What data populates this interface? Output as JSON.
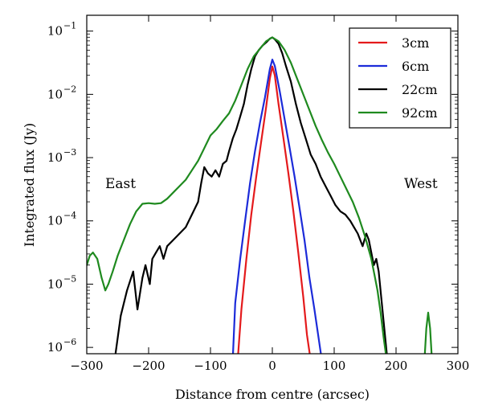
{
  "chart_data": {
    "type": "line",
    "xlabel": "Distance from centre (arcsec)",
    "ylabel": "Integrated flux (Jy)",
    "xlim": [
      -300,
      300
    ],
    "ylim_log10": [
      -6.1,
      -0.75
    ],
    "y_scale": "log",
    "x_ticks": [
      -300,
      -200,
      -100,
      0,
      100,
      200,
      300
    ],
    "x_tick_labels": [
      "−300",
      "−200",
      "−100",
      "0",
      "100",
      "200",
      "300"
    ],
    "y_ticks_log10": [
      -6,
      -5,
      -4,
      -3,
      -2,
      -1
    ],
    "y_tick_mantissa": "10",
    "y_tick_exponents": [
      "−6",
      "−5",
      "−4",
      "−3",
      "−2",
      "−1"
    ],
    "annotations": {
      "left": "East",
      "right": "West"
    },
    "legend_position": "top-right",
    "series": [
      {
        "name": "3cm",
        "color": "#e41a1c",
        "x": [
          -56,
          -50,
          -42,
          -34,
          -26,
          -18,
          -10,
          -4,
          0,
          4,
          10,
          18,
          26,
          34,
          42,
          50,
          56,
          62
        ],
        "log_y": [
          -6.2,
          -5.4,
          -4.6,
          -3.9,
          -3.3,
          -2.75,
          -2.2,
          -1.75,
          -1.56,
          -1.7,
          -2.15,
          -2.7,
          -3.25,
          -3.85,
          -4.5,
          -5.2,
          -5.8,
          -6.2
        ]
      },
      {
        "name": "6cm",
        "color": "#1c2bd9",
        "x": [
          -64,
          -60,
          -52,
          -44,
          -36,
          -28,
          -20,
          -12,
          -4,
          0,
          4,
          12,
          20,
          28,
          36,
          44,
          52,
          60,
          68,
          74,
          80
        ],
        "log_y": [
          -6.2,
          -5.3,
          -4.6,
          -4.0,
          -3.4,
          -2.9,
          -2.45,
          -2.05,
          -1.6,
          -1.45,
          -1.55,
          -1.95,
          -2.4,
          -2.85,
          -3.3,
          -3.8,
          -4.3,
          -4.9,
          -5.4,
          -5.8,
          -6.2
        ]
      },
      {
        "name": "22cm",
        "color": "#000000",
        "x": [
          -255,
          -245,
          -235,
          -225,
          -218,
          -210,
          -205,
          -198,
          -194,
          -188,
          -182,
          -176,
          -170,
          -160,
          -150,
          -140,
          -130,
          -120,
          -115,
          -110,
          -104,
          -98,
          -92,
          -86,
          -80,
          -74,
          -70,
          -64,
          -58,
          -52,
          -46,
          -40,
          -34,
          -28,
          -22,
          -16,
          -10,
          -4,
          0,
          4,
          10,
          16,
          22,
          30,
          38,
          46,
          54,
          62,
          70,
          78,
          86,
          94,
          102,
          110,
          118,
          126,
          132,
          138,
          146,
          152,
          156,
          160,
          164,
          168,
          172,
          176,
          180,
          184,
          186,
          188
        ],
        "log_y": [
          -6.2,
          -5.5,
          -5.1,
          -4.8,
          -5.4,
          -4.9,
          -4.7,
          -5.0,
          -4.6,
          -4.5,
          -4.4,
          -4.6,
          -4.4,
          -4.3,
          -4.2,
          -4.1,
          -3.9,
          -3.7,
          -3.4,
          -3.15,
          -3.25,
          -3.3,
          -3.2,
          -3.3,
          -3.1,
          -3.05,
          -2.9,
          -2.7,
          -2.55,
          -2.35,
          -2.15,
          -1.85,
          -1.6,
          -1.4,
          -1.3,
          -1.23,
          -1.18,
          -1.12,
          -1.1,
          -1.13,
          -1.2,
          -1.35,
          -1.55,
          -1.8,
          -2.15,
          -2.45,
          -2.7,
          -2.95,
          -3.1,
          -3.3,
          -3.45,
          -3.6,
          -3.75,
          -3.85,
          -3.9,
          -4.0,
          -4.1,
          -4.2,
          -4.4,
          -4.2,
          -4.3,
          -4.5,
          -4.7,
          -4.6,
          -4.8,
          -5.2,
          -5.6,
          -6.0,
          -6.2,
          -6.3
        ]
      },
      {
        "name": "92cm",
        "color": "#1f8a1f",
        "x": [
          -300,
          -295,
          -290,
          -283,
          -276,
          -270,
          -265,
          -258,
          -250,
          -240,
          -230,
          -220,
          -210,
          -200,
          -190,
          -180,
          -170,
          -160,
          -150,
          -140,
          -130,
          -120,
          -110,
          -100,
          -90,
          -80,
          -70,
          -60,
          -50,
          -40,
          -30,
          -20,
          -10,
          0,
          10,
          20,
          30,
          40,
          50,
          60,
          70,
          80,
          90,
          100,
          110,
          120,
          130,
          140,
          150,
          160,
          165,
          170,
          175,
          180,
          185,
          188
        ],
        "log_y": [
          -4.7,
          -4.55,
          -4.5,
          -4.6,
          -4.9,
          -5.1,
          -5.0,
          -4.8,
          -4.55,
          -4.3,
          -4.05,
          -3.85,
          -3.73,
          -3.72,
          -3.73,
          -3.72,
          -3.65,
          -3.55,
          -3.45,
          -3.35,
          -3.2,
          -3.05,
          -2.85,
          -2.65,
          -2.55,
          -2.42,
          -2.3,
          -2.1,
          -1.85,
          -1.6,
          -1.4,
          -1.28,
          -1.16,
          -1.1,
          -1.16,
          -1.3,
          -1.5,
          -1.75,
          -2.0,
          -2.25,
          -2.5,
          -2.72,
          -2.92,
          -3.1,
          -3.3,
          -3.5,
          -3.7,
          -3.95,
          -4.25,
          -4.6,
          -4.85,
          -5.1,
          -5.45,
          -5.85,
          -6.2,
          -6.4
        ]
      },
      {
        "name": "92cm-tail",
        "color": "#1f8a1f",
        "legend": false,
        "x": [
          246,
          249,
          252,
          255,
          258
        ],
        "log_y": [
          -6.2,
          -5.7,
          -5.45,
          -5.7,
          -6.2
        ]
      }
    ]
  }
}
